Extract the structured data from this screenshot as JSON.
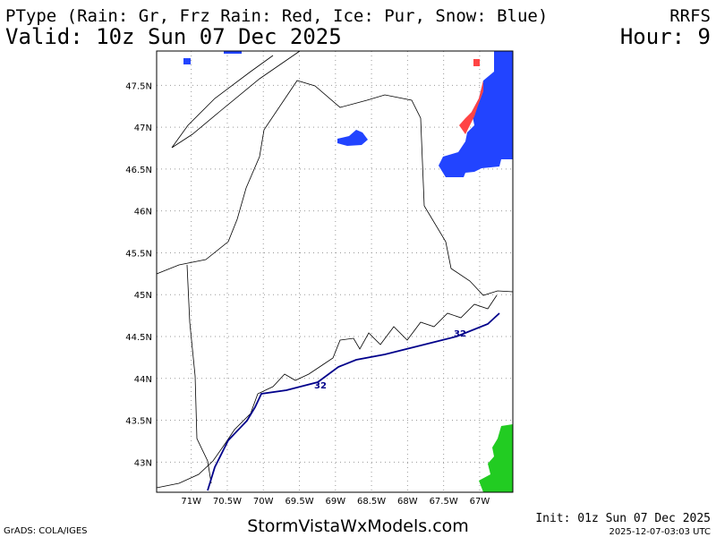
{
  "header": {
    "title": "PType (Rain: Gr, Frz Rain: Red, Ice: Pur, Snow: Blue)",
    "model": "RRFS",
    "valid": "Valid: 10z Sun 07 Dec 2025",
    "hour": "Hour: 9"
  },
  "map": {
    "xlim": [
      -71.48,
      -66.54
    ],
    "ylim": [
      42.64,
      47.91
    ],
    "xticks": [
      {
        "value": -71,
        "label": "71W"
      },
      {
        "value": -70.5,
        "label": "70.5W"
      },
      {
        "value": -70,
        "label": "70W"
      },
      {
        "value": -69.5,
        "label": "69.5W"
      },
      {
        "value": -69,
        "label": "69W"
      },
      {
        "value": -68.5,
        "label": "68.5W"
      },
      {
        "value": -68,
        "label": "68W"
      },
      {
        "value": -67.5,
        "label": "67.5W"
      },
      {
        "value": -67,
        "label": "67W"
      }
    ],
    "yticks": [
      {
        "value": 47.5,
        "label": "47.5N"
      },
      {
        "value": 47,
        "label": "47N"
      },
      {
        "value": 46.5,
        "label": "46.5N"
      },
      {
        "value": 46,
        "label": "46N"
      },
      {
        "value": 45.5,
        "label": "45.5N"
      },
      {
        "value": 45,
        "label": "45N"
      },
      {
        "value": 44.5,
        "label": "44.5N"
      },
      {
        "value": 44,
        "label": "44N"
      },
      {
        "value": 43.5,
        "label": "43.5N"
      },
      {
        "value": 43,
        "label": "43N"
      }
    ],
    "contour_labels": [
      32,
      32
    ]
  },
  "footer": {
    "credit": "GrADS: COLA/IGES",
    "site": "StormVistaWxModels.com",
    "init": "Init: 01z Sun 07 Dec 2025",
    "timestamp": "2025-12-07-03:03 UTC"
  }
}
